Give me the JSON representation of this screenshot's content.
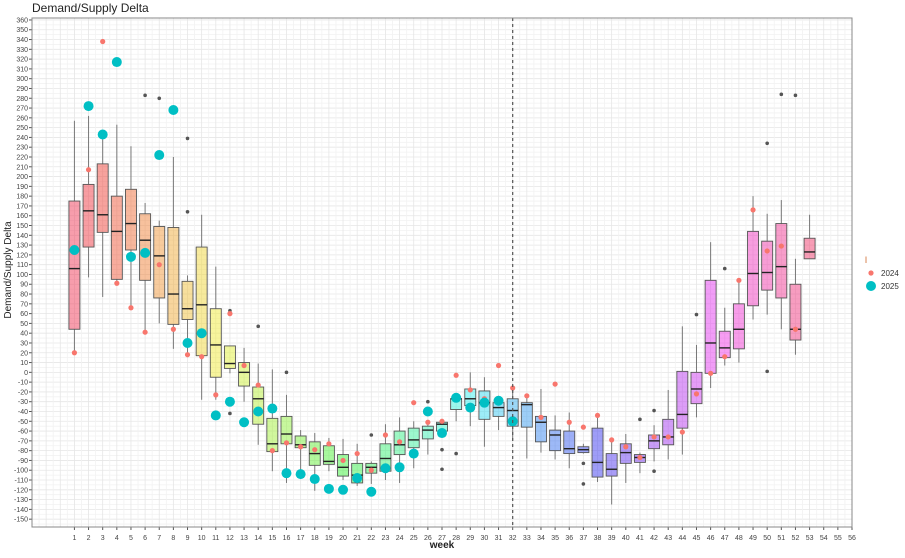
{
  "chart_data": {
    "type": "boxplot",
    "title": "Demand/Supply Delta",
    "xlabel": "week",
    "ylabel": "Demand/Supply Delta",
    "xlim": [
      -2,
      56
    ],
    "ylim": [
      -158,
      362
    ],
    "x_ticks": [
      1,
      2,
      3,
      4,
      5,
      6,
      7,
      8,
      9,
      10,
      11,
      12,
      13,
      14,
      15,
      16,
      17,
      18,
      19,
      20,
      21,
      22,
      23,
      24,
      25,
      26,
      27,
      28,
      29,
      30,
      31,
      32,
      33,
      34,
      35,
      36,
      37,
      38,
      39,
      40,
      41,
      42,
      43,
      44,
      45,
      46,
      47,
      48,
      49,
      50,
      51,
      52,
      53,
      54,
      55,
      56
    ],
    "y_ticks": [
      -150,
      -140,
      -130,
      -120,
      -110,
      -100,
      -90,
      -80,
      -70,
      -60,
      -50,
      -40,
      -30,
      -20,
      -10,
      0,
      10,
      20,
      30,
      40,
      50,
      60,
      70,
      80,
      90,
      100,
      110,
      120,
      130,
      140,
      150,
      160,
      170,
      180,
      190,
      200,
      210,
      220,
      230,
      240,
      250,
      260,
      270,
      280,
      290,
      300,
      310,
      320,
      330,
      340,
      350,
      360
    ],
    "grid": true,
    "vline_week": 32,
    "legend": {
      "title": "l",
      "position": "right",
      "entries": [
        {
          "label": "2024",
          "color": "#F8766D"
        },
        {
          "label": "2025",
          "color": "#00BFC4"
        }
      ]
    },
    "outlier_color": "#555555",
    "boxes": [
      {
        "week": 1,
        "lo": 20,
        "q1": 44,
        "median": 106,
        "q3": 175,
        "hi": 257,
        "outliers": [],
        "y2024": 20,
        "y2025": 125
      },
      {
        "week": 2,
        "lo": 97,
        "q1": 128,
        "median": 165,
        "q3": 192,
        "hi": 262,
        "outliers": [],
        "y2024": 207,
        "y2025": 272
      },
      {
        "week": 3,
        "lo": 77,
        "q1": 143,
        "median": 161,
        "q3": 213,
        "hi": 238,
        "outliers": [],
        "y2024": 338,
        "y2025": 243
      },
      {
        "week": 4,
        "lo": 91,
        "q1": 95,
        "median": 144,
        "q3": 180,
        "hi": 253,
        "outliers": [],
        "y2024": 91,
        "y2025": 317
      },
      {
        "week": 5,
        "lo": 66,
        "q1": 125,
        "median": 152,
        "q3": 187,
        "hi": 231,
        "outliers": [],
        "y2024": 66,
        "y2025": 118
      },
      {
        "week": 6,
        "lo": 41,
        "q1": 94,
        "median": 135,
        "q3": 162,
        "hi": 173,
        "outliers": [
          283
        ],
        "y2024": 41,
        "y2025": 122
      },
      {
        "week": 7,
        "lo": 50,
        "q1": 76,
        "median": 119,
        "q3": 149,
        "hi": 155,
        "outliers": [
          280
        ],
        "y2024": 110,
        "y2025": 222
      },
      {
        "week": 8,
        "lo": 24,
        "q1": 49,
        "median": 80,
        "q3": 148,
        "hi": 220,
        "outliers": [],
        "y2024": 44,
        "y2025": 268
      },
      {
        "week": 9,
        "lo": 18,
        "q1": 54,
        "median": 65,
        "q3": 93,
        "hi": 99,
        "outliers": [
          239,
          164
        ],
        "y2024": 18,
        "y2025": 30
      },
      {
        "week": 10,
        "lo": -28,
        "q1": 17,
        "median": 69,
        "q3": 128,
        "hi": 161,
        "outliers": [],
        "y2024": 16,
        "y2025": 40
      },
      {
        "week": 11,
        "lo": -28,
        "q1": -5,
        "median": 28,
        "q3": 65,
        "hi": 108,
        "outliers": [],
        "y2024": -23,
        "y2025": -44
      },
      {
        "week": 12,
        "lo": -1,
        "q1": 4,
        "median": 9,
        "q3": 27,
        "hi": 27,
        "outliers": [
          63,
          -42
        ],
        "y2024": 60,
        "y2025": -30
      },
      {
        "week": 13,
        "lo": -30,
        "q1": -14,
        "median": 0,
        "q3": 10,
        "hi": 25,
        "outliers": [],
        "y2024": 7,
        "y2025": -51
      },
      {
        "week": 14,
        "lo": -74,
        "q1": -53,
        "median": -27,
        "q3": -15,
        "hi": 9,
        "outliers": [
          47
        ],
        "y2024": -13,
        "y2025": -40
      },
      {
        "week": 15,
        "lo": -101,
        "q1": -81,
        "median": -73,
        "q3": -47,
        "hi": 3,
        "outliers": [],
        "y2024": -80,
        "y2025": -37
      },
      {
        "week": 16,
        "lo": -113,
        "q1": -73,
        "median": -63,
        "q3": -45,
        "hi": -23,
        "outliers": [
          0
        ],
        "y2024": -72,
        "y2025": -103
      },
      {
        "week": 17,
        "lo": -108,
        "q1": -77,
        "median": -74,
        "q3": -65,
        "hi": -59,
        "outliers": [],
        "y2024": -76,
        "y2025": -104
      },
      {
        "week": 18,
        "lo": -121,
        "q1": -95,
        "median": -83,
        "q3": -71,
        "hi": -62,
        "outliers": [],
        "y2024": -79,
        "y2025": -109
      },
      {
        "week": 19,
        "lo": -101,
        "q1": -94,
        "median": -91,
        "q3": -75,
        "hi": -67,
        "outliers": [],
        "y2024": -73,
        "y2025": -119
      },
      {
        "week": 20,
        "lo": -110,
        "q1": -106,
        "median": -97,
        "q3": -84,
        "hi": -68,
        "outliers": [],
        "y2024": -90,
        "y2025": -120
      },
      {
        "week": 21,
        "lo": -116,
        "q1": -113,
        "median": -105,
        "q3": -93,
        "hi": -73,
        "outliers": [],
        "y2024": -83,
        "y2025": -108
      },
      {
        "week": 22,
        "lo": -114,
        "q1": -103,
        "median": -97,
        "q3": -93,
        "hi": -91,
        "outliers": [
          -64
        ],
        "y2024": -100,
        "y2025": -122
      },
      {
        "week": 23,
        "lo": -110,
        "q1": -101,
        "median": -88,
        "q3": -73,
        "hi": -53,
        "outliers": [],
        "y2024": -64,
        "y2025": -98
      },
      {
        "week": 24,
        "lo": -113,
        "q1": -84,
        "median": -74,
        "q3": -60,
        "hi": -46,
        "outliers": [],
        "y2024": -71,
        "y2025": -97
      },
      {
        "week": 25,
        "lo": -98,
        "q1": -77,
        "median": -69,
        "q3": -57,
        "hi": -50,
        "outliers": [],
        "y2024": -31,
        "y2025": -83
      },
      {
        "week": 26,
        "lo": -84,
        "q1": -68,
        "median": -59,
        "q3": -55,
        "hi": -52,
        "outliers": [
          -30
        ],
        "y2024": -51,
        "y2025": -40
      },
      {
        "week": 27,
        "lo": -60,
        "q1": -60,
        "median": -53,
        "q3": -51,
        "hi": -49,
        "outliers": [
          -79,
          -99
        ],
        "y2024": -50,
        "y2025": -62
      },
      {
        "week": 28,
        "lo": -50,
        "q1": -38,
        "median": -27,
        "q3": -27,
        "hi": -27,
        "outliers": [
          -83
        ],
        "y2024": -3,
        "y2025": -26
      },
      {
        "week": 29,
        "lo": -55,
        "q1": -34,
        "median": -27,
        "q3": -17,
        "hi": 0,
        "outliers": [],
        "y2024": -18,
        "y2025": -36
      },
      {
        "week": 30,
        "lo": -76,
        "q1": -48,
        "median": -31,
        "q3": -19,
        "hi": -5,
        "outliers": [],
        "y2024": -27,
        "y2025": -31
      },
      {
        "week": 31,
        "lo": -59,
        "q1": -45,
        "median": -36,
        "q3": -31,
        "hi": -24,
        "outliers": [],
        "y2024": 7,
        "y2025": -29
      },
      {
        "week": 32,
        "lo": -70,
        "q1": -55,
        "median": -39,
        "q3": -27,
        "hi": -17,
        "outliers": [],
        "y2024": -16,
        "y2025": -50
      },
      {
        "week": 33,
        "lo": -88,
        "q1": -56,
        "median": -33,
        "q3": -31,
        "hi": -26,
        "outliers": [],
        "y2024": -24,
        "y2025": null
      },
      {
        "week": 34,
        "lo": -82,
        "q1": -71,
        "median": -51,
        "q3": -45,
        "hi": -17,
        "outliers": [],
        "y2024": -46,
        "y2025": null
      },
      {
        "week": 35,
        "lo": -89,
        "q1": -80,
        "median": -64,
        "q3": -59,
        "hi": -44,
        "outliers": [],
        "y2024": -12,
        "y2025": null
      },
      {
        "week": 36,
        "lo": -98,
        "q1": -83,
        "median": -78,
        "q3": -60,
        "hi": -41,
        "outliers": [],
        "y2024": -51,
        "y2025": null
      },
      {
        "week": 37,
        "lo": -83,
        "q1": -82,
        "median": -79,
        "q3": -76,
        "hi": -73,
        "outliers": [
          -93,
          -114
        ],
        "y2024": -56,
        "y2025": null
      },
      {
        "week": 38,
        "lo": -112,
        "q1": -107,
        "median": -92,
        "q3": -57,
        "hi": -44,
        "outliers": [],
        "y2024": -44,
        "y2025": null
      },
      {
        "week": 39,
        "lo": -135,
        "q1": -106,
        "median": -99,
        "q3": -83,
        "hi": -70,
        "outliers": [],
        "y2024": -69,
        "y2025": null
      },
      {
        "week": 40,
        "lo": -113,
        "q1": -93,
        "median": -82,
        "q3": -73,
        "hi": -63,
        "outliers": [],
        "y2024": -76,
        "y2025": null
      },
      {
        "week": 41,
        "lo": -103,
        "q1": -92,
        "median": -87,
        "q3": -84,
        "hi": -82,
        "outliers": [
          -48
        ],
        "y2024": -87,
        "y2025": null
      },
      {
        "week": 42,
        "lo": -91,
        "q1": -78,
        "median": -70,
        "q3": -64,
        "hi": -54,
        "outliers": [
          -39,
          -101
        ],
        "y2024": -66,
        "y2025": null
      },
      {
        "week": 43,
        "lo": -89,
        "q1": -74,
        "median": -66,
        "q3": -48,
        "hi": -18,
        "outliers": [],
        "y2024": -66,
        "y2025": null
      },
      {
        "week": 44,
        "lo": -84,
        "q1": -57,
        "median": -43,
        "q3": 1,
        "hi": 47,
        "outliers": [],
        "y2024": -61,
        "y2025": null
      },
      {
        "week": 45,
        "lo": -46,
        "q1": -32,
        "median": -17,
        "q3": 0,
        "hi": 28,
        "outliers": [
          59
        ],
        "y2024": -22,
        "y2025": null
      },
      {
        "week": 46,
        "lo": -16,
        "q1": -1,
        "median": 30,
        "q3": 94,
        "hi": 133,
        "outliers": [],
        "y2024": -1,
        "y2025": null
      },
      {
        "week": 47,
        "lo": 7,
        "q1": 15,
        "median": 25,
        "q3": 42,
        "hi": 66,
        "outliers": [
          106
        ],
        "y2024": 16,
        "y2025": null
      },
      {
        "week": 48,
        "lo": 10,
        "q1": 24,
        "median": 44,
        "q3": 70,
        "hi": 94,
        "outliers": [],
        "y2024": 94,
        "y2025": null
      },
      {
        "week": 49,
        "lo": 54,
        "q1": 68,
        "median": 101,
        "q3": 144,
        "hi": 180,
        "outliers": [],
        "y2024": 166,
        "y2025": null
      },
      {
        "week": 50,
        "lo": 59,
        "q1": 84,
        "median": 102,
        "q3": 134,
        "hi": 162,
        "outliers": [
          1,
          234
        ],
        "y2024": 124,
        "y2025": null
      },
      {
        "week": 51,
        "lo": 44,
        "q1": 76,
        "median": 108,
        "q3": 152,
        "hi": 176,
        "outliers": [
          284
        ],
        "y2024": 129,
        "y2025": null
      },
      {
        "week": 52,
        "lo": 18,
        "q1": 33,
        "median": 44,
        "q3": 90,
        "hi": 116,
        "outliers": [
          283
        ],
        "y2024": 44,
        "y2025": null
      },
      {
        "week": 53,
        "lo": 116,
        "q1": 116,
        "median": 123,
        "q3": 137,
        "hi": 161,
        "outliers": [],
        "y2024": null,
        "y2025": null
      }
    ]
  }
}
